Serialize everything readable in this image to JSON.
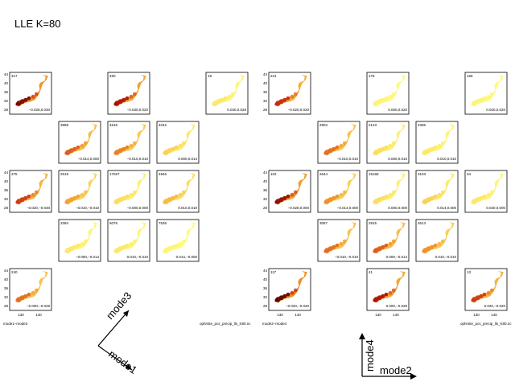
{
  "title": "LLE K=80",
  "colors": {
    "low": "#ffff80",
    "mid": "#f3a030",
    "high": "#c01010",
    "dark": "#5a0000",
    "frame": "#000000"
  },
  "chart_data": [
    {
      "type": "map-panel-grid",
      "name": "left-block",
      "xlabel_caption": "mode1−mode3",
      "footer": "",
      "x_ticks": [
        "130",
        "140"
      ],
      "y_ticks": [
        "44",
        "40",
        "36",
        "32",
        "28"
      ],
      "panels": [
        {
          "row": 0,
          "col": 0,
          "count": "317",
          "coord": "−0.028,0.030",
          "intensity": 0.95
        },
        {
          "row": 0,
          "col": 2,
          "count": "450",
          "coord": "−0.030,0.020",
          "intensity": 0.85
        },
        {
          "row": 0,
          "col": 4,
          "count": "19",
          "coord": "0.030,0.028",
          "intensity": 0.1
        },
        {
          "row": 1,
          "col": 1,
          "count": "3998",
          "coord": "−0.014,0.000",
          "intensity": 0.6
        },
        {
          "row": 1,
          "col": 2,
          "count": "4616",
          "coord": "−0.010,0.010",
          "intensity": 0.5
        },
        {
          "row": 1,
          "col": 3,
          "count": "4042",
          "coord": "0.000,0.014",
          "intensity": 0.2
        },
        {
          "row": 2,
          "col": 0,
          "count": "375",
          "coord": "−0.020,−0.030",
          "intensity": 0.7
        },
        {
          "row": 2,
          "col": 1,
          "count": "2519",
          "coord": "−0.010,−0.010",
          "intensity": 0.4
        },
        {
          "row": 2,
          "col": 2,
          "count": "17027",
          "coord": "−0.000,0.000",
          "intensity": 0.15
        },
        {
          "row": 2,
          "col": 3,
          "count": "4946",
          "coord": "0.010,0.010",
          "intensity": 0.3
        },
        {
          "row": 3,
          "col": 1,
          "count": "3394",
          "coord": "−0.000,−0.014",
          "intensity": 0.1
        },
        {
          "row": 3,
          "col": 2,
          "count": "6076",
          "coord": "0.010,−0.010",
          "intensity": 0.1
        },
        {
          "row": 3,
          "col": 3,
          "count": "7536",
          "coord": "0.014,−0.000",
          "intensity": 0.05
        },
        {
          "row": 4,
          "col": 0,
          "count": "240",
          "coord": "−0.000,−0.028",
          "intensity": 0.55
        }
      ]
    },
    {
      "type": "map-panel-grid",
      "name": "right-block",
      "xlabel_caption": "mode2−mode4",
      "footer": "ophrsite_pcs_precip_lls_K80.nc",
      "footer_left": "ophrsite_pcs_precip_lls_K80.nc",
      "x_ticks": [
        "130",
        "140"
      ],
      "y_ticks": [
        "44",
        "40",
        "36",
        "32",
        "28"
      ],
      "panels": [
        {
          "row": 0,
          "col": 0,
          "count": "221",
          "coord": "−0.020,0.020",
          "intensity": 0.75
        },
        {
          "row": 0,
          "col": 2,
          "count": "176",
          "coord": "0.000,0.020",
          "intensity": 0.05
        },
        {
          "row": 0,
          "col": 4,
          "count": "165",
          "coord": "0.020,0.020",
          "intensity": 0.05
        },
        {
          "row": 1,
          "col": 1,
          "count": "2904",
          "coord": "−0.010,0.010",
          "intensity": 0.55
        },
        {
          "row": 1,
          "col": 2,
          "count": "2123",
          "coord": "0.000,0.010",
          "intensity": 0.15
        },
        {
          "row": 1,
          "col": 3,
          "count": "2306",
          "coord": "0.010,0.010",
          "intensity": 0.1
        },
        {
          "row": 2,
          "col": 0,
          "count": "102",
          "coord": "−0.028,0.000",
          "intensity": 0.9
        },
        {
          "row": 2,
          "col": 1,
          "count": "2644",
          "coord": "−0.014,0.000",
          "intensity": 0.45
        },
        {
          "row": 2,
          "col": 2,
          "count": "15168",
          "coord": "0.000,0.000",
          "intensity": 0.15
        },
        {
          "row": 2,
          "col": 3,
          "count": "3103",
          "coord": "0.014,0.000",
          "intensity": 0.2
        },
        {
          "row": 2,
          "col": 4,
          "count": "34",
          "coord": "0.030,0.000",
          "intensity": 0.1
        },
        {
          "row": 3,
          "col": 1,
          "count": "3067",
          "coord": "−0.010,−0.010",
          "intensity": 0.55
        },
        {
          "row": 3,
          "col": 2,
          "count": "2915",
          "coord": "0.000,−0.014",
          "intensity": 0.6
        },
        {
          "row": 3,
          "col": 3,
          "count": "3613",
          "coord": "0.010,−0.010",
          "intensity": 0.45
        },
        {
          "row": 4,
          "col": 0,
          "count": "117",
          "coord": "−0.020,−0.020",
          "intensity": 1.0
        },
        {
          "row": 4,
          "col": 2,
          "count": "41",
          "coord": "0.000,−0.028",
          "intensity": 0.85
        },
        {
          "row": 4,
          "col": 4,
          "count": "13",
          "coord": "0.020,−0.020",
          "intensity": 0.7
        }
      ]
    }
  ],
  "axes_left": {
    "label_a": "mode3",
    "label_b": "mode1"
  },
  "axes_right": {
    "label_a": "mode4",
    "label_b": "mode2"
  }
}
